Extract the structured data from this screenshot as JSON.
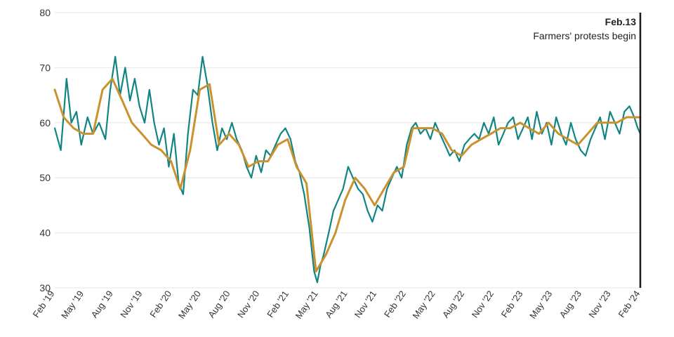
{
  "chart_data": {
    "type": "line",
    "title": "",
    "xlabel": "",
    "ylabel": "",
    "ylim": [
      30,
      80
    ],
    "yticks": [
      30,
      40,
      50,
      60,
      70,
      80
    ],
    "x_tick_labels": [
      "Feb '19",
      "May '19",
      "Aug '19",
      "Nov '19",
      "Feb '20",
      "May '20",
      "Aug '20",
      "Nov '20",
      "Feb '21",
      "May '21",
      "Aug '21",
      "Nov '21",
      "Feb '22",
      "May '22",
      "Aug '22",
      "Nov '22",
      "Feb '23",
      "May '23",
      "Aug '23",
      "Nov '23",
      "Feb '24"
    ],
    "grid": true,
    "x_start": "2019-02-01",
    "x_end": "2024-02-13",
    "colors": {
      "daily": "#118484",
      "average": "#c9922e",
      "marker": "#1a1a1a",
      "grid": "#e6e6e6"
    },
    "annotation": {
      "date": "2024-02-13",
      "title": "Feb.13",
      "text": "Farmers' protests begin"
    },
    "series": [
      {
        "style": "daily",
        "color": "#118484",
        "x": [
          "2019-02-01",
          "2019-02-20",
          "2019-03-10",
          "2019-03-25",
          "2019-04-10",
          "2019-04-25",
          "2019-05-15",
          "2019-06-01",
          "2019-06-20",
          "2019-07-10",
          "2019-07-25",
          "2019-08-10",
          "2019-08-25",
          "2019-09-10",
          "2019-09-25",
          "2019-10-10",
          "2019-10-25",
          "2019-11-10",
          "2019-11-25",
          "2019-12-10",
          "2019-12-25",
          "2020-01-10",
          "2020-01-25",
          "2020-02-10",
          "2020-02-25",
          "2020-03-10",
          "2020-03-25",
          "2020-04-10",
          "2020-04-25",
          "2020-05-10",
          "2020-05-25",
          "2020-06-10",
          "2020-06-25",
          "2020-07-10",
          "2020-07-25",
          "2020-08-10",
          "2020-08-25",
          "2020-09-10",
          "2020-09-25",
          "2020-10-10",
          "2020-10-25",
          "2020-11-10",
          "2020-11-25",
          "2020-12-10",
          "2020-12-25",
          "2021-01-10",
          "2021-01-25",
          "2021-02-10",
          "2021-02-25",
          "2021-03-10",
          "2021-03-25",
          "2021-04-10",
          "2021-04-25",
          "2021-05-05",
          "2021-05-15",
          "2021-05-25",
          "2021-06-10",
          "2021-06-25",
          "2021-07-10",
          "2021-07-25",
          "2021-08-10",
          "2021-08-25",
          "2021-09-10",
          "2021-09-25",
          "2021-10-10",
          "2021-10-25",
          "2021-11-10",
          "2021-11-25",
          "2021-12-10",
          "2021-12-25",
          "2022-01-10",
          "2022-01-25",
          "2022-02-10",
          "2022-02-25",
          "2022-03-10",
          "2022-03-25",
          "2022-04-10",
          "2022-04-25",
          "2022-05-10",
          "2022-05-25",
          "2022-06-10",
          "2022-06-25",
          "2022-07-10",
          "2022-07-25",
          "2022-08-10",
          "2022-08-25",
          "2022-09-10",
          "2022-09-25",
          "2022-10-10",
          "2022-10-25",
          "2022-11-10",
          "2022-11-25",
          "2022-12-10",
          "2022-12-25",
          "2023-01-10",
          "2023-01-25",
          "2023-02-10",
          "2023-02-25",
          "2023-03-10",
          "2023-03-25",
          "2023-04-10",
          "2023-04-25",
          "2023-05-10",
          "2023-05-25",
          "2023-06-10",
          "2023-06-25",
          "2023-07-10",
          "2023-07-25",
          "2023-08-10",
          "2023-08-25",
          "2023-09-10",
          "2023-09-25",
          "2023-10-10",
          "2023-10-25",
          "2023-11-10",
          "2023-11-25",
          "2023-12-10",
          "2023-12-25",
          "2024-01-10",
          "2024-01-25",
          "2024-02-05",
          "2024-02-13"
        ],
        "y": [
          59,
          55,
          68,
          60,
          62,
          56,
          61,
          58,
          60,
          57,
          66,
          72,
          65,
          70,
          64,
          68,
          63,
          60,
          66,
          60,
          56,
          59,
          52,
          58,
          49,
          47,
          58,
          66,
          65,
          72,
          67,
          60,
          55,
          59,
          57,
          60,
          57,
          55,
          52,
          50,
          54,
          51,
          55,
          54,
          56,
          58,
          59,
          57,
          53,
          51,
          47,
          41,
          33,
          31,
          34,
          36,
          40,
          44,
          46,
          48,
          52,
          50,
          48,
          47,
          44,
          42,
          45,
          44,
          48,
          50,
          52,
          50,
          56,
          59,
          60,
          58,
          59,
          57,
          60,
          58,
          56,
          54,
          55,
          53,
          56,
          57,
          58,
          57,
          60,
          58,
          61,
          56,
          58,
          60,
          61,
          57,
          59,
          61,
          57,
          62,
          58,
          60,
          56,
          61,
          58,
          56,
          60,
          57,
          55,
          54,
          57,
          59,
          61,
          57,
          62,
          60,
          58,
          62,
          63,
          61,
          59,
          58
        ]
      },
      {
        "style": "average",
        "color": "#c9922e",
        "x": [
          "2019-02-01",
          "2019-03-01",
          "2019-04-01",
          "2019-05-01",
          "2019-06-01",
          "2019-07-01",
          "2019-08-01",
          "2019-09-01",
          "2019-10-01",
          "2019-11-01",
          "2019-12-01",
          "2020-01-01",
          "2020-02-01",
          "2020-03-01",
          "2020-04-01",
          "2020-05-01",
          "2020-06-01",
          "2020-07-01",
          "2020-08-01",
          "2020-09-01",
          "2020-10-01",
          "2020-11-01",
          "2020-12-01",
          "2021-01-01",
          "2021-02-01",
          "2021-03-01",
          "2021-04-01",
          "2021-05-01",
          "2021-06-01",
          "2021-07-01",
          "2021-08-01",
          "2021-09-01",
          "2021-10-01",
          "2021-11-01",
          "2021-12-01",
          "2022-01-01",
          "2022-02-01",
          "2022-03-01",
          "2022-04-01",
          "2022-05-01",
          "2022-06-01",
          "2022-07-01",
          "2022-08-01",
          "2022-09-01",
          "2022-10-01",
          "2022-11-01",
          "2022-12-01",
          "2023-01-01",
          "2023-02-01",
          "2023-03-01",
          "2023-04-01",
          "2023-05-01",
          "2023-06-01",
          "2023-07-01",
          "2023-08-01",
          "2023-09-01",
          "2023-10-01",
          "2023-11-01",
          "2023-12-01",
          "2024-01-01",
          "2024-02-13"
        ],
        "y": [
          66,
          61,
          59,
          58,
          58,
          66,
          68,
          64,
          60,
          58,
          56,
          55,
          53,
          48,
          55,
          66,
          67,
          56,
          58,
          56,
          52,
          53,
          53,
          56,
          57,
          52,
          49,
          33,
          36,
          40,
          46,
          50,
          48,
          45,
          48,
          51,
          52,
          59,
          59,
          59,
          58,
          55,
          54,
          56,
          57,
          58,
          59,
          59,
          60,
          59,
          58,
          60,
          58,
          57,
          56,
          58,
          60,
          60,
          60,
          61,
          61
        ]
      }
    ]
  }
}
